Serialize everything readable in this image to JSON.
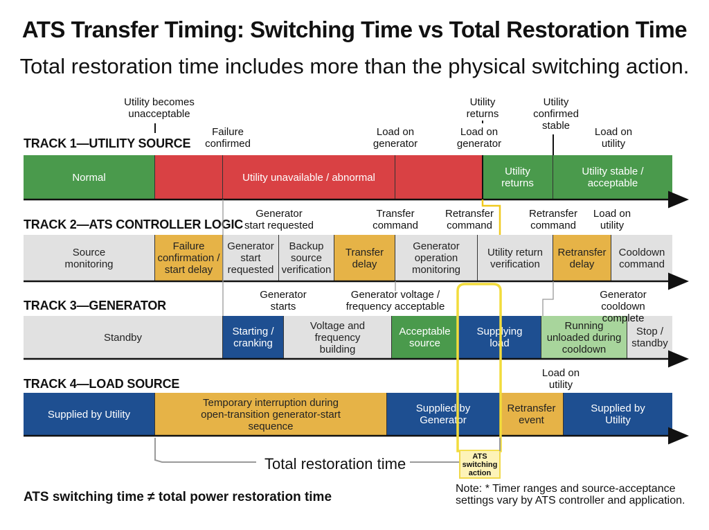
{
  "title": "ATS Transfer Timing: Switching Time vs Total Restoration Time",
  "subtitle": "Total restoration time includes more than the physical switching action.",
  "tracks": [
    {
      "label": "TRACK 1—UTILITY SOURCE",
      "segments": [
        {
          "text": "Normal",
          "color": "green"
        },
        {
          "text": "",
          "color": "red"
        },
        {
          "text": "Utility unavailable / abnormal",
          "color": "red"
        },
        {
          "text": "",
          "color": "red"
        },
        {
          "text": "Utility\nreturns",
          "color": "green"
        },
        {
          "text": "Utility stable /\nacceptable",
          "color": "green"
        }
      ],
      "annotations": [
        "Utility becomes\nunacceptable",
        "Failure\nconfirmed",
        "Load on\ngenerator",
        "Utility\nreturns",
        "Load on\ngenerator",
        "Utility\nconfirmed\nstable",
        "Load on\nutility"
      ]
    },
    {
      "label": "TRACK 2—ATS CONTROLLER LOGIC",
      "segments": [
        {
          "text": "Source\nmonitoring",
          "color": "gray"
        },
        {
          "text": "Failure\nconfirmation /\nstart delay",
          "color": "orange"
        },
        {
          "text": "Generator\nstart\nrequested",
          "color": "gray"
        },
        {
          "text": "Backup\nsource\nverification",
          "color": "gray"
        },
        {
          "text": "Transfer\ndelay",
          "color": "orange"
        },
        {
          "text": "Generator\noperation\nmonitoring",
          "color": "gray"
        },
        {
          "text": "Utility return\nverification",
          "color": "gray"
        },
        {
          "text": "Retransfer\ndelay",
          "color": "orange"
        },
        {
          "text": "Cooldown\ncommand",
          "color": "gray"
        }
      ],
      "annotations": [
        "Generator\nstart requested",
        "Transfer\ncommand",
        "Retransfer\ncommand",
        "Retransfer\ncommand",
        "Load on\nutility"
      ]
    },
    {
      "label": "TRACK 3—GENERATOR",
      "segments": [
        {
          "text": "Standby",
          "color": "gray"
        },
        {
          "text": "Starting /\ncranking",
          "color": "blue"
        },
        {
          "text": "Voltage and\nfrequency\nbuilding",
          "color": "gray"
        },
        {
          "text": "Acceptable\nsource",
          "color": "green"
        },
        {
          "text": "Supplying\nload",
          "color": "blue"
        },
        {
          "text": "Running\nunloaded during\ncooldown",
          "color": "lgreen"
        },
        {
          "text": "Stop /\nstandby",
          "color": "gray"
        }
      ],
      "annotations": [
        "Generator\nstarts",
        "Generator voltage /\nfrequency acceptable",
        "Generator\ncooldown complete"
      ]
    },
    {
      "label": "TRACK 4—LOAD SOURCE",
      "segments": [
        {
          "text": "Supplied by Utility",
          "color": "blue"
        },
        {
          "text": "Temporary interruption during\nopen-transition generator-start\nsequence",
          "color": "orange"
        },
        {
          "text": "Supplied by\nGenerator",
          "color": "blue"
        },
        {
          "text": "Retransfer\nevent",
          "color": "orange"
        },
        {
          "text": "Supplied by\nUtility",
          "color": "blue"
        }
      ],
      "annotations": [
        "Load on\nutility"
      ]
    }
  ],
  "restoration_label": "Total restoration time",
  "ats_switching_label": "ATS\nswitching\naction",
  "footer": "ATS switching time ≠ total power restoration time",
  "note": "Note: * Timer ranges and source-acceptance\nsettings vary by ATS controller and application."
}
